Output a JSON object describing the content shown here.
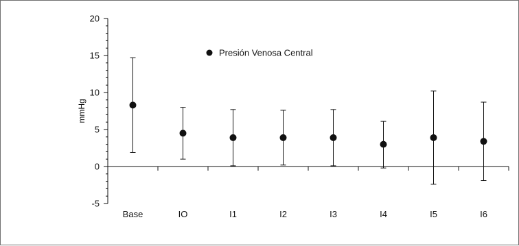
{
  "chart_data": {
    "type": "scatter",
    "subtype": "point-with-error-bars",
    "title": "",
    "xlabel": "",
    "ylabel": "mmHg",
    "ylim": [
      -5,
      20
    ],
    "yticks": [
      -5,
      0,
      5,
      10,
      15,
      20
    ],
    "ytick_labels": [
      "-5",
      "0",
      "5",
      "10",
      "15",
      "20"
    ],
    "categories": [
      "Base",
      "IO",
      "I1",
      "I2",
      "I3",
      "I4",
      "I5",
      "I6"
    ],
    "legend_position": "top-center",
    "grid": false,
    "series": [
      {
        "name": "Presión Venosa Central",
        "color": "#111111",
        "marker": "circle",
        "values": [
          8.3,
          4.5,
          3.9,
          3.9,
          3.9,
          3.0,
          3.9,
          3.4
        ],
        "lower": [
          1.9,
          1.0,
          0.1,
          0.2,
          0.1,
          -0.2,
          -2.4,
          -1.9
        ],
        "upper": [
          14.7,
          8.0,
          7.7,
          7.6,
          7.7,
          6.1,
          10.2,
          8.7
        ]
      }
    ]
  }
}
